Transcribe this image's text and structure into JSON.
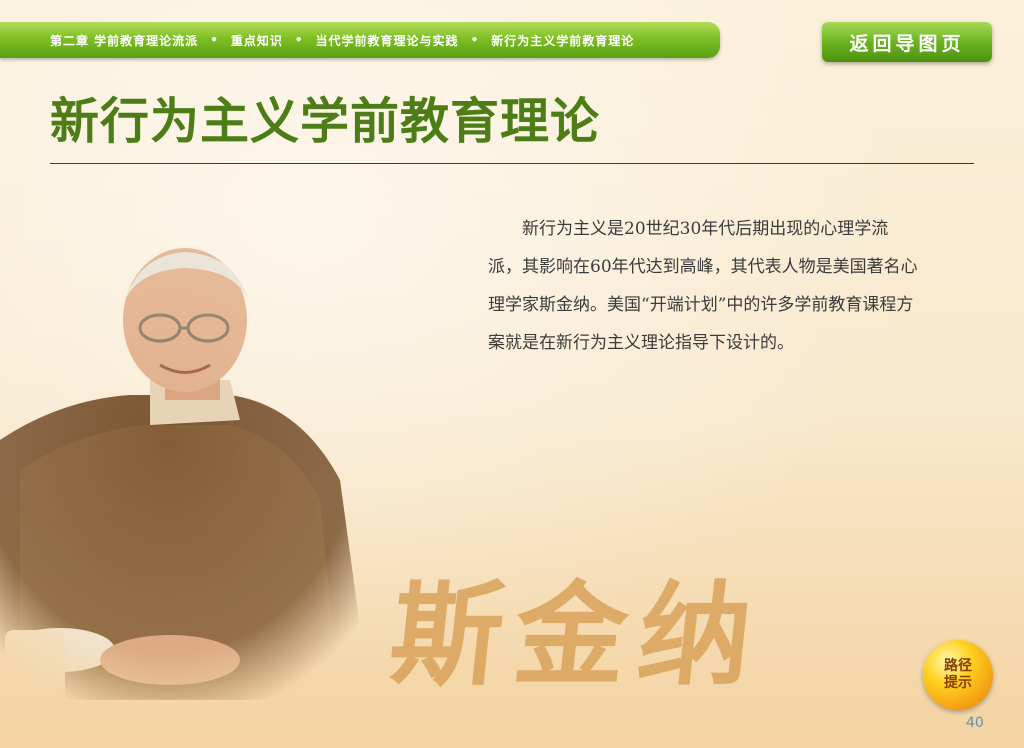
{
  "breadcrumb": {
    "items": [
      "第二章 学前教育理论流派",
      "重点知识",
      "当代学前教育理论与实践",
      "新行为主义学前教育理论"
    ],
    "separator": "•"
  },
  "nav": {
    "back_label": "返回导图页"
  },
  "page": {
    "title": "新行为主义学前教育理论",
    "body": "新行为主义是20世纪30年代后期出现的心理学流派，其影响在60年代达到高峰，其代表人物是美国著名心理学家斯金纳。美国“开端计划”中的许多学前教育课程方案就是在新行为主义理论指导下设计的。",
    "calligraphy": "斯金纳",
    "page_number": "40"
  },
  "path_hint": {
    "line1": "路径",
    "line2": "提示"
  },
  "colors": {
    "title": "#4c7d17",
    "bar_green": "#7fbf25",
    "background": "#f8e8cc",
    "calligraphy": "#d9a35a"
  }
}
